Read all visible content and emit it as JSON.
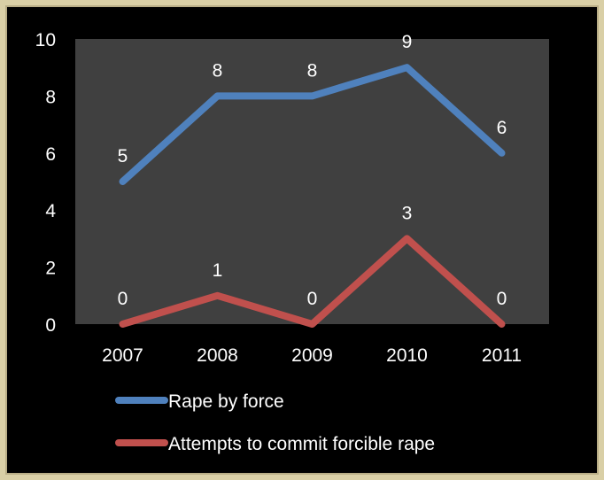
{
  "chart_data": {
    "type": "line",
    "categories": [
      "2007",
      "2008",
      "2009",
      "2010",
      "2011"
    ],
    "ylim": [
      0,
      10
    ],
    "yticks": [
      0,
      2,
      4,
      6,
      8,
      10
    ],
    "grid": false,
    "legend_position": "bottom",
    "series": [
      {
        "name": "Rape by force",
        "color": "#4f81bd",
        "values": [
          5,
          8,
          8,
          9,
          6
        ]
      },
      {
        "name": "Attempts to commit forcible rape",
        "color": "#c0504d",
        "values": [
          0,
          1,
          0,
          3,
          0
        ]
      }
    ]
  },
  "colors": {
    "background": "#000000",
    "plot_area": "#404040",
    "text": "#ffffff",
    "frame": "#d9cfa6"
  }
}
